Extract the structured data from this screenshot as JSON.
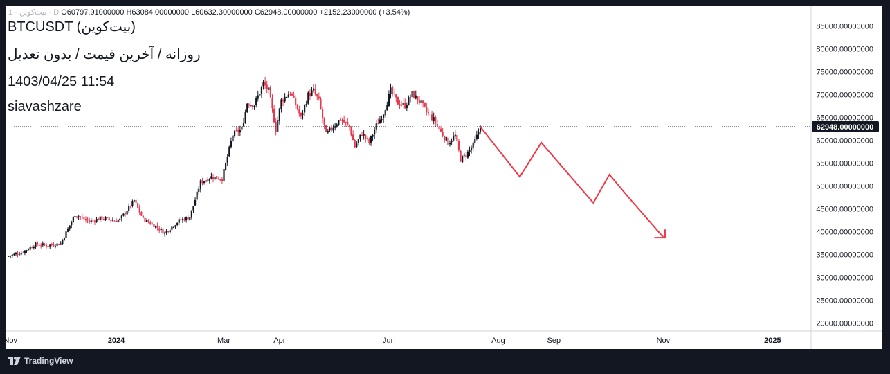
{
  "header": {
    "ohlc_prefix": "1 · بیت‌کوین · D",
    "open": "O60797.91000000",
    "high": "H63084.00000000",
    "low": "L60632.30000000",
    "close": "C62948.00000000",
    "change": "+2152.23000000 (+3.54%)",
    "symbol": "BTCUSDT (بیت‌کوین)",
    "subtitle": "روزانه / آخرین قیمت / بدون تعدیل",
    "datetime": "1403/04/25 11:54",
    "author": "siavashzare"
  },
  "branding": {
    "logo_text": "TradingView"
  },
  "colors": {
    "background": "#131722",
    "panel": "#ffffff",
    "up": "#131722",
    "down": "#e53950",
    "arrow": "#f23645",
    "label_bg": "#131722",
    "label_text": "#ffffff",
    "grid": "#d1d4dc"
  },
  "chart_data": {
    "type": "candlestick",
    "title": "BTCUSDT",
    "timeframe": "1D",
    "last_price": 62948,
    "last_price_label": "62948.00000000",
    "ylim": [
      17500,
      88000
    ],
    "y_ticks": [
      {
        "value": 85000,
        "label": "85000.00000000"
      },
      {
        "value": 80000,
        "label": "80000.00000000"
      },
      {
        "value": 75000,
        "label": "75000.00000000"
      },
      {
        "value": 70000,
        "label": "70000.00000000"
      },
      {
        "value": 65000,
        "label": "65000.00000000"
      },
      {
        "value": 60000,
        "label": "60000.00000000"
      },
      {
        "value": 55000,
        "label": "55000.00000000"
      },
      {
        "value": 50000,
        "label": "50000.00000000"
      },
      {
        "value": 45000,
        "label": "45000.00000000"
      },
      {
        "value": 40000,
        "label": "40000.00000000"
      },
      {
        "value": 35000,
        "label": "35000.00000000"
      },
      {
        "value": 30000,
        "label": "30000.00000000"
      },
      {
        "value": 25000,
        "label": "25000.00000000"
      },
      {
        "value": 20000,
        "label": "20000.00000000"
      }
    ],
    "x_domain": [
      -8,
      420
    ],
    "x_ticks": [
      {
        "day": -6,
        "label": "Nov",
        "bold": false
      },
      {
        "day": 53,
        "label": "2024",
        "bold": true
      },
      {
        "day": 113,
        "label": "Mar",
        "bold": false
      },
      {
        "day": 144,
        "label": "Apr",
        "bold": false
      },
      {
        "day": 205,
        "label": "Jun",
        "bold": false
      },
      {
        "day": 266,
        "label": "Aug",
        "bold": false
      },
      {
        "day": 297,
        "label": "Sep",
        "bold": false
      },
      {
        "day": 358,
        "label": "Nov",
        "bold": false
      },
      {
        "day": 419,
        "label": "2025",
        "bold": true
      }
    ],
    "close_anchors": [
      [
        -8,
        34600
      ],
      [
        0,
        35400
      ],
      [
        8,
        37200
      ],
      [
        15,
        37000
      ],
      [
        22,
        37400
      ],
      [
        30,
        43800
      ],
      [
        38,
        42200
      ],
      [
        45,
        43000
      ],
      [
        52,
        42400
      ],
      [
        55,
        42600
      ],
      [
        63,
        46800
      ],
      [
        68,
        42700
      ],
      [
        75,
        41200
      ],
      [
        80,
        39700
      ],
      [
        88,
        42400
      ],
      [
        94,
        43200
      ],
      [
        100,
        50800
      ],
      [
        106,
        52000
      ],
      [
        112,
        51600
      ],
      [
        118,
        61200
      ],
      [
        123,
        62500
      ],
      [
        126,
        68200
      ],
      [
        130,
        67800
      ],
      [
        135,
        72400
      ],
      [
        138,
        70800
      ],
      [
        142,
        62400
      ],
      [
        145,
        68700
      ],
      [
        150,
        70500
      ],
      [
        156,
        65000
      ],
      [
        160,
        69900
      ],
      [
        163,
        70800
      ],
      [
        166,
        68500
      ],
      [
        170,
        61200
      ],
      [
        174,
        63000
      ],
      [
        178,
        64700
      ],
      [
        183,
        62900
      ],
      [
        186,
        58600
      ],
      [
        190,
        61500
      ],
      [
        194,
        59500
      ],
      [
        198,
        63200
      ],
      [
        202,
        66000
      ],
      [
        206,
        70800
      ],
      [
        210,
        68200
      ],
      [
        214,
        67600
      ],
      [
        218,
        70100
      ],
      [
        222,
        68600
      ],
      [
        226,
        66200
      ],
      [
        230,
        64500
      ],
      [
        234,
        61800
      ],
      [
        238,
        59500
      ],
      [
        242,
        61000
      ],
      [
        245,
        55800
      ],
      [
        248,
        56800
      ],
      [
        252,
        58900
      ],
      [
        254,
        60800
      ],
      [
        256,
        62948
      ]
    ],
    "forecast_path": [
      [
        256,
        62948
      ],
      [
        278,
        52000
      ],
      [
        290,
        59500
      ],
      [
        319,
        46300
      ],
      [
        328,
        52500
      ],
      [
        338,
        47800
      ],
      [
        358,
        38800
      ]
    ],
    "forecast_arrowhead": [
      [
        353,
        38700
      ],
      [
        359,
        38700
      ],
      [
        359,
        40500
      ]
    ]
  }
}
